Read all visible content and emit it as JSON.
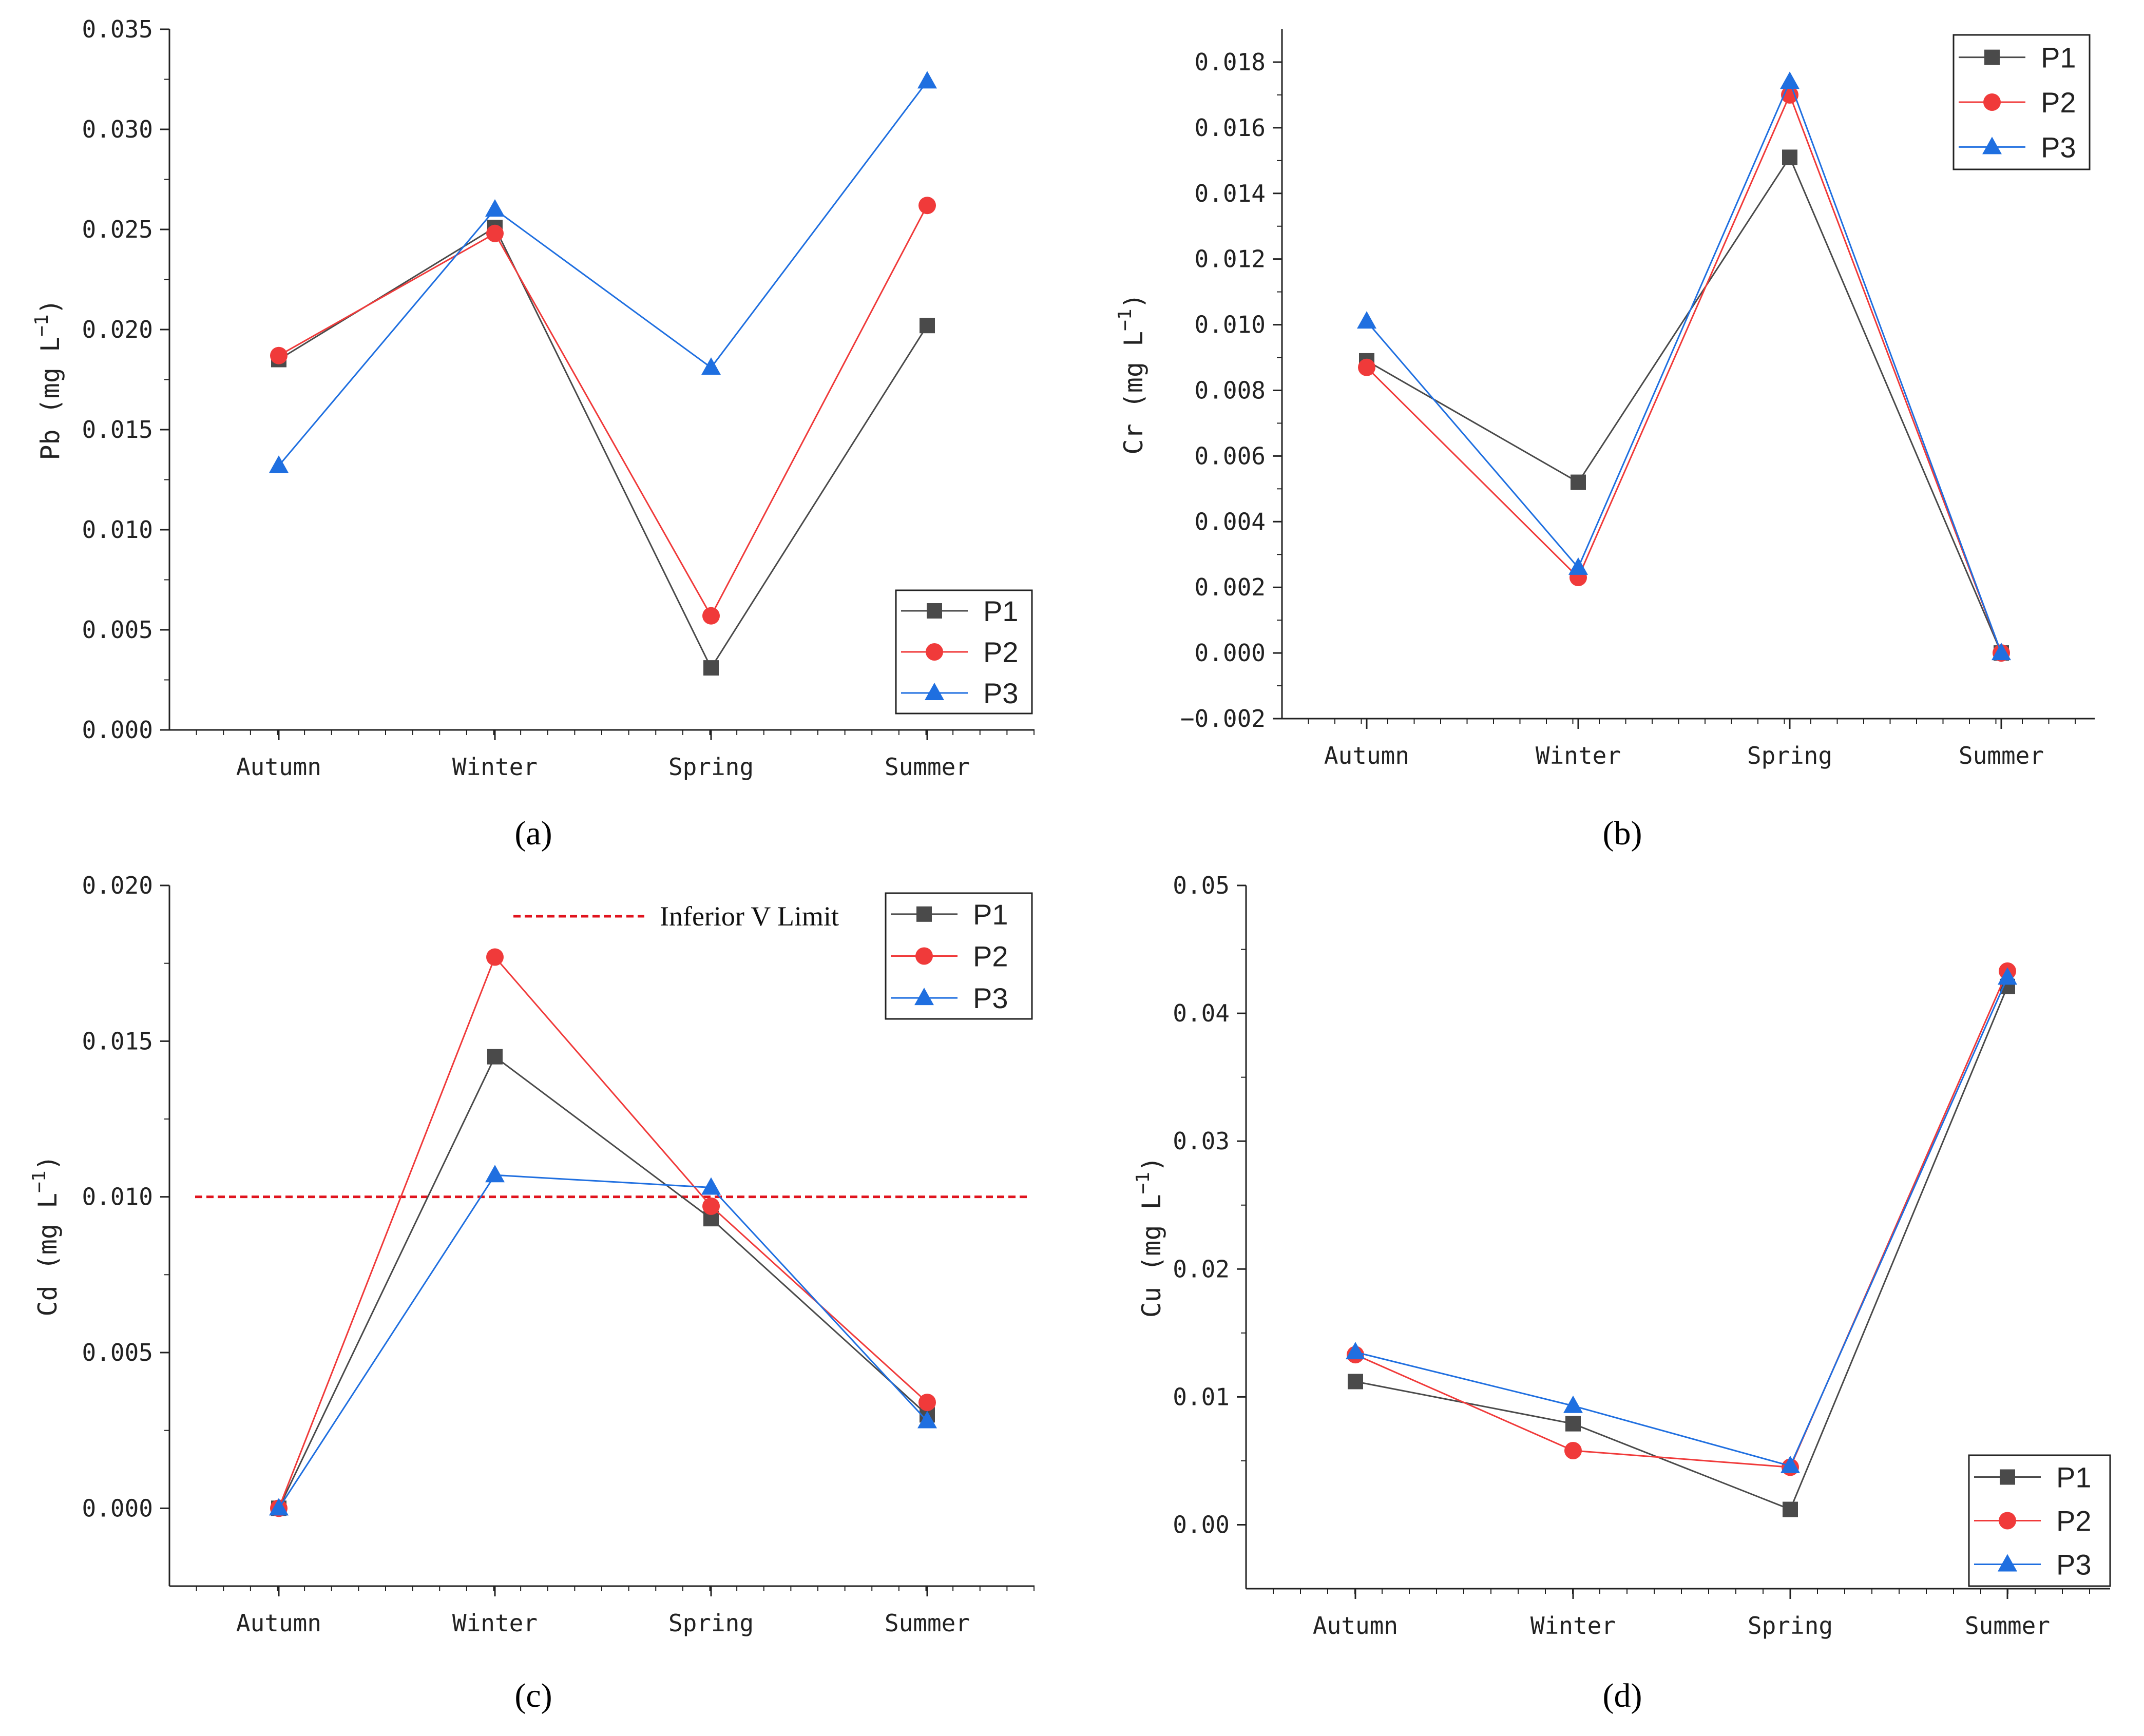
{
  "colors": {
    "P1": "#4a4a4a",
    "P2": "#f03a3a",
    "P3": "#1f6fe0",
    "reference": "#e0141e"
  },
  "chart_data": [
    {
      "panel": "(a)",
      "label_letter": "a",
      "type": "line",
      "title": "",
      "xlabel": "",
      "ylabel": "Pb (mg L",
      "ylabel_sup": "−1",
      "ylabel_close": ")",
      "categories": [
        "Autumn",
        "Winter",
        "Spring",
        "Summer"
      ],
      "ylim": [
        0,
        0.035
      ],
      "yticks": [
        "0.000",
        "0.005",
        "0.010",
        "0.015",
        "0.020",
        "0.025",
        "0.030",
        "0.035"
      ],
      "legend_position": "bottom-right",
      "series": [
        {
          "name": "P1",
          "marker": "square",
          "values": [
            0.0185,
            0.0251,
            0.0031,
            0.0202
          ]
        },
        {
          "name": "P2",
          "marker": "circle",
          "values": [
            0.0187,
            0.0248,
            0.0057,
            0.0262
          ]
        },
        {
          "name": "P3",
          "marker": "triangle",
          "values": [
            0.0132,
            0.026,
            0.0181,
            0.0324
          ]
        }
      ]
    },
    {
      "panel": "(b)",
      "label_letter": "b",
      "type": "line",
      "title": "",
      "xlabel": "",
      "ylabel": "Cr (mg L",
      "ylabel_sup": "−1",
      "ylabel_close": ")",
      "categories": [
        "Autumn",
        "Winter",
        "Spring",
        "Summer"
      ],
      "ylim": [
        -0.002,
        0.019
      ],
      "yticks": [
        "−0.002",
        "0.000",
        "0.002",
        "0.004",
        "0.006",
        "0.008",
        "0.010",
        "0.012",
        "0.014",
        "0.016",
        "0.018"
      ],
      "legend_position": "top-right",
      "series": [
        {
          "name": "P1",
          "marker": "square",
          "values": [
            0.0089,
            0.0052,
            0.0151,
            0.0
          ]
        },
        {
          "name": "P2",
          "marker": "circle",
          "values": [
            0.0087,
            0.0023,
            0.017,
            0.0
          ]
        },
        {
          "name": "P3",
          "marker": "triangle",
          "values": [
            0.0101,
            0.0026,
            0.0174,
            0.0
          ]
        }
      ]
    },
    {
      "panel": "(c)",
      "label_letter": "c",
      "type": "line",
      "title": "",
      "xlabel": "",
      "ylabel": "Cd (mg L",
      "ylabel_sup": "−1",
      "ylabel_close": ")",
      "categories": [
        "Autumn",
        "Winter",
        "Spring",
        "Summer"
      ],
      "ylim": [
        -0.0025,
        0.02
      ],
      "yticks": [
        "0.000",
        "0.005",
        "0.010",
        "0.015",
        "0.020"
      ],
      "legend_position": "top-right",
      "reference_line": {
        "label": "Inferior V Limit",
        "value": 0.01
      },
      "series": [
        {
          "name": "P1",
          "marker": "square",
          "values": [
            0.0,
            0.0145,
            0.0093,
            0.003
          ]
        },
        {
          "name": "P2",
          "marker": "circle",
          "values": [
            0.0,
            0.0177,
            0.0097,
            0.0034
          ]
        },
        {
          "name": "P3",
          "marker": "triangle",
          "values": [
            0.0,
            0.0107,
            0.0103,
            0.0028
          ]
        }
      ]
    },
    {
      "panel": "(d)",
      "label_letter": "d",
      "type": "line",
      "title": "",
      "xlabel": "",
      "ylabel": "Cu (mg L",
      "ylabel_sup": "−1",
      "ylabel_close": ")",
      "categories": [
        "Autumn",
        "Winter",
        "Spring",
        "Summer"
      ],
      "ylim": [
        -0.005,
        0.05
      ],
      "yticks": [
        "0.00",
        "0.01",
        "0.02",
        "0.03",
        "0.04",
        "0.05"
      ],
      "legend_position": "bottom-right",
      "series": [
        {
          "name": "P1",
          "marker": "square",
          "values": [
            0.0112,
            0.0079,
            0.0012,
            0.0421
          ]
        },
        {
          "name": "P2",
          "marker": "circle",
          "values": [
            0.0133,
            0.0058,
            0.0045,
            0.0433
          ]
        },
        {
          "name": "P3",
          "marker": "triangle",
          "values": [
            0.0135,
            0.0093,
            0.0046,
            0.0428
          ]
        }
      ]
    }
  ]
}
